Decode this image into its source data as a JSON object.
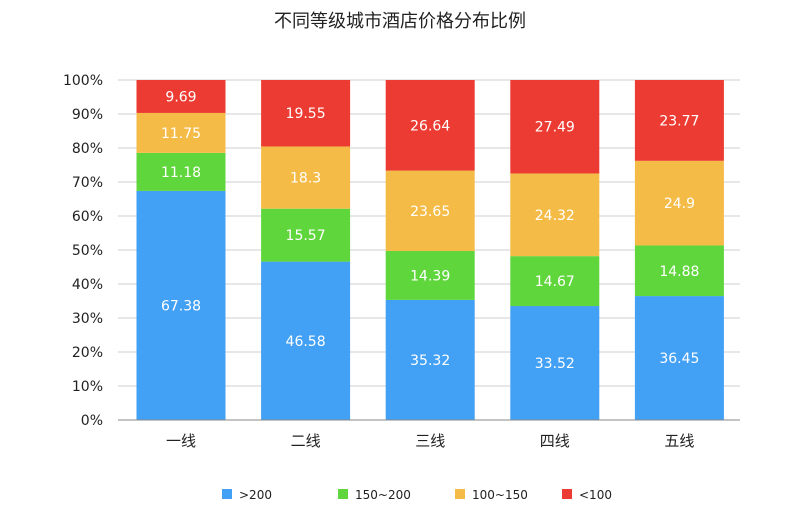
{
  "chart_data": {
    "type": "bar",
    "stacked": true,
    "title": "不同等级城市酒店价格分布比例",
    "xlabel": "",
    "ylabel": "",
    "categories": [
      "一线",
      "二线",
      "三线",
      "四线",
      "五线"
    ],
    "series": [
      {
        "name": ">200",
        "color": "#42a0f5",
        "values": [
          67.38,
          46.58,
          35.32,
          33.52,
          36.45
        ],
        "labels": [
          "67.38",
          "46.58",
          "35.32",
          "33.52",
          "36.45"
        ]
      },
      {
        "name": "150~200",
        "color": "#5fd63c",
        "values": [
          11.18,
          15.57,
          14.39,
          14.67,
          14.88
        ],
        "labels": [
          "11.18",
          "15.57",
          "14.39",
          "14.67",
          "14.88"
        ]
      },
      {
        "name": "100~150",
        "color": "#f5bb47",
        "values": [
          11.75,
          18.3,
          23.65,
          24.32,
          24.9
        ],
        "labels": [
          "11.75",
          "18.3",
          "23.65",
          "24.32",
          "24.9"
        ]
      },
      {
        "name": "<100",
        "color": "#ec3b32",
        "values": [
          9.69,
          19.55,
          26.64,
          27.49,
          23.77
        ],
        "labels": [
          "9.69",
          "19.55",
          "26.64",
          "27.49",
          "23.77"
        ]
      }
    ],
    "ylim": [
      0,
      100
    ],
    "y_ticks": [
      "0%",
      "10%",
      "20%",
      "30%",
      "40%",
      "50%",
      "60%",
      "70%",
      "80%",
      "90%",
      "100%"
    ],
    "grid": true,
    "legend_position": "bottom"
  }
}
